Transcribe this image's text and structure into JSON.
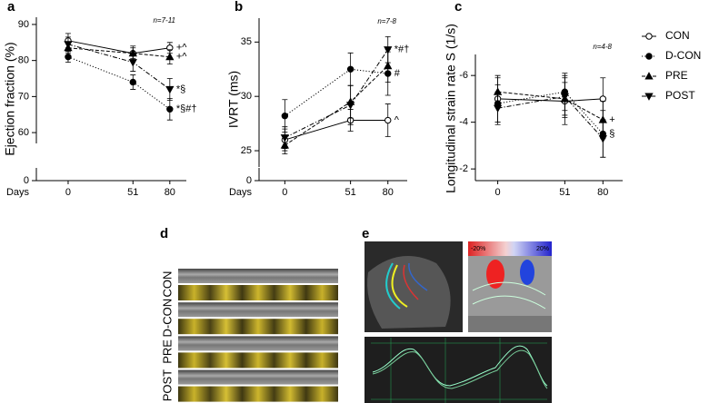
{
  "chart_data": [
    {
      "type": "line",
      "panel_label": "a",
      "ylabel": "Ejection fraction (%)",
      "xlabel": "Days",
      "n_label": "n=7-11",
      "x": [
        0,
        51,
        80
      ],
      "xlim": [
        -25,
        93
      ],
      "xticks": [
        0,
        51,
        80
      ],
      "ylim": [
        57,
        92
      ],
      "yticks": [
        0,
        60,
        70,
        80,
        90
      ],
      "axis_break": true,
      "reversed": false,
      "series": [
        {
          "name": "CON",
          "color": "#000000",
          "marker": "open-circle",
          "line_style": "solid",
          "values": [
            85.5,
            82,
            83.5
          ],
          "errors": [
            2,
            2,
            1.5
          ],
          "point_labels": [
            null,
            null,
            "+^"
          ]
        },
        {
          "name": "D-CON",
          "color": "#000000",
          "marker": "circle",
          "line_style": "dotted",
          "values": [
            81,
            74,
            66.5
          ],
          "errors": [
            1.5,
            2,
            3
          ],
          "point_labels": [
            null,
            null,
            "*§#†"
          ]
        },
        {
          "name": "PRE",
          "color": "#000000",
          "marker": "triangle-up",
          "line_style": "dashed",
          "values": [
            83.5,
            82,
            81
          ],
          "errors": [
            1.5,
            1.5,
            2
          ],
          "point_labels": [
            null,
            null,
            "+^"
          ]
        },
        {
          "name": "POST",
          "color": "#000000",
          "marker": "triangle-down",
          "line_style": "dashdot",
          "values": [
            84.5,
            79.5,
            72
          ],
          "errors": [
            2,
            2.5,
            3
          ],
          "point_labels": [
            null,
            null,
            "*§"
          ]
        }
      ]
    },
    {
      "type": "line",
      "panel_label": "b",
      "ylabel": "IVRT (ms)",
      "xlabel": "Days",
      "n_label": "n=7-8",
      "x": [
        0,
        51,
        80
      ],
      "xlim": [
        -20,
        95
      ],
      "xticks": [
        0,
        51,
        80
      ],
      "ylim": [
        23.5,
        37.2
      ],
      "yticks": [
        0,
        25,
        30,
        35
      ],
      "axis_break": true,
      "reversed": false,
      "series": [
        {
          "name": "CON",
          "color": "#000000",
          "marker": "open-circle",
          "line_style": "solid",
          "values": [
            26,
            27.8,
            27.8
          ],
          "errors": [
            1,
            1,
            1.5
          ],
          "point_labels": [
            null,
            null,
            "^"
          ]
        },
        {
          "name": "D-CON",
          "color": "#000000",
          "marker": "circle",
          "line_style": "dotted",
          "values": [
            28.2,
            32.5,
            32.1
          ],
          "errors": [
            1.5,
            1.5,
            2
          ],
          "point_labels": [
            null,
            null,
            "#"
          ]
        },
        {
          "name": "PRE",
          "color": "#000000",
          "marker": "triangle-up",
          "line_style": "dashed",
          "values": [
            25.5,
            29.5,
            32.8
          ],
          "errors": [
            0.8,
            1.5,
            1.5
          ],
          "point_labels": [
            null,
            null,
            null
          ]
        },
        {
          "name": "POST",
          "color": "#000000",
          "marker": "triangle-down",
          "line_style": "dashdot",
          "values": [
            26.2,
            29.2,
            34.3
          ],
          "errors": [
            1,
            1.8,
            1.2
          ],
          "point_labels": [
            null,
            null,
            "*#†"
          ]
        }
      ]
    },
    {
      "type": "line",
      "panel_label": "c",
      "ylabel": "Longitudinal strain rate S (1/s)",
      "n_label": "n=4-8",
      "x": [
        0,
        51,
        80
      ],
      "xlim": [
        -17,
        95
      ],
      "xticks": [
        0,
        51,
        80
      ],
      "ylim": [
        -6.9,
        -1.5
      ],
      "yticks": [
        -6,
        -4,
        -2
      ],
      "axis_break": false,
      "reversed": true,
      "series": [
        {
          "name": "CON",
          "color": "#000000",
          "marker": "open-circle",
          "line_style": "solid",
          "values": [
            -5.0,
            -4.9,
            -5.0
          ],
          "errors": [
            1,
            1,
            0.9
          ],
          "point_labels": [
            null,
            null,
            null
          ]
        },
        {
          "name": "D-CON",
          "color": "#000000",
          "marker": "circle",
          "line_style": "dotted",
          "values": [
            -4.8,
            -5.3,
            -3.5
          ],
          "errors": [
            0.8,
            0.8,
            1
          ],
          "point_labels": [
            null,
            null,
            "§"
          ]
        },
        {
          "name": "PRE",
          "color": "#000000",
          "marker": "triangle-up",
          "line_style": "dashed",
          "values": [
            -5.3,
            -5.0,
            -4.1
          ],
          "errors": [
            0.6,
            0.7,
            0.8
          ],
          "point_labels": [
            null,
            null,
            "+"
          ]
        },
        {
          "name": "POST",
          "color": "#000000",
          "marker": "triangle-down",
          "line_style": "dashdot",
          "values": [
            -4.6,
            -5.1,
            -3.3
          ],
          "errors": [
            0.7,
            0.9,
            0.8
          ],
          "point_labels": [
            null,
            null,
            null
          ]
        }
      ]
    }
  ],
  "panels": [
    {
      "label": "d",
      "rows": [
        "CON",
        "D-CON",
        "PRE",
        "POST"
      ]
    },
    {
      "label": "e",
      "scale_min": "-20%",
      "scale_max": "20%"
    }
  ]
}
